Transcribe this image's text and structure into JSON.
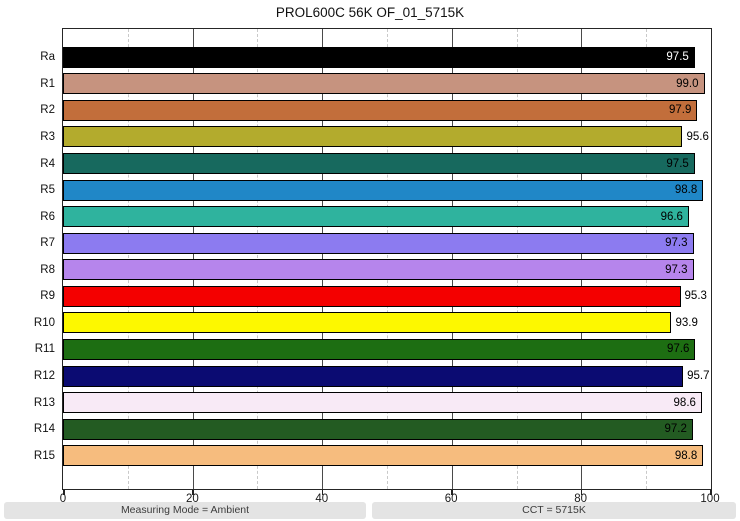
{
  "title": "PROL600C 56K OF_01_5715K",
  "status_bar": {
    "left": "Measuring Mode = Ambient",
    "right": "CCT = 5715K"
  },
  "chart_data": {
    "type": "bar",
    "orientation": "horizontal",
    "title": "PROL600C 56K OF_01_5715K",
    "xlabel": "",
    "ylabel": "",
    "xlim": [
      0,
      100
    ],
    "x_major_ticks": [
      0,
      20,
      40,
      60,
      80,
      100
    ],
    "x_minor_ticks": [
      10,
      30,
      50,
      70,
      90
    ],
    "grid": true,
    "legend": false,
    "categories": [
      "Ra",
      "R1",
      "R2",
      "R3",
      "R4",
      "R5",
      "R6",
      "R7",
      "R8",
      "R9",
      "R10",
      "R11",
      "R12",
      "R13",
      "R14",
      "R15"
    ],
    "values": [
      97.5,
      99.0,
      97.9,
      95.6,
      97.5,
      98.8,
      96.6,
      97.3,
      97.3,
      95.3,
      93.9,
      97.6,
      95.7,
      98.6,
      97.2,
      98.8
    ],
    "value_labels": [
      "97.5",
      "99.0",
      "97.9",
      "95.6",
      "97.5",
      "98.8",
      "96.6",
      "97.3",
      "97.3",
      "95.3",
      "93.9",
      "97.6",
      "95.7",
      "98.6",
      "97.2",
      "98.8"
    ],
    "bar_colors": [
      "#000000",
      "#c6937f",
      "#c26e3b",
      "#b3ab2d",
      "#17695e",
      "#2087c7",
      "#2fb39e",
      "#8c7bf0",
      "#b685ec",
      "#f40000",
      "#fdf800",
      "#1d6e12",
      "#0b0b72",
      "#f8eaf6",
      "#235b22",
      "#f6bc7e"
    ],
    "value_label_inside": [
      true,
      true,
      true,
      false,
      true,
      true,
      true,
      true,
      true,
      false,
      false,
      true,
      false,
      true,
      true,
      true
    ],
    "value_label_colors": [
      "#ffffff",
      "#000000",
      "#000000",
      "#000000",
      "#000000",
      "#000000",
      "#000000",
      "#000000",
      "#000000",
      "#000000",
      "#000000",
      "#000000",
      "#000000",
      "#000000",
      "#000000",
      "#000000"
    ]
  }
}
